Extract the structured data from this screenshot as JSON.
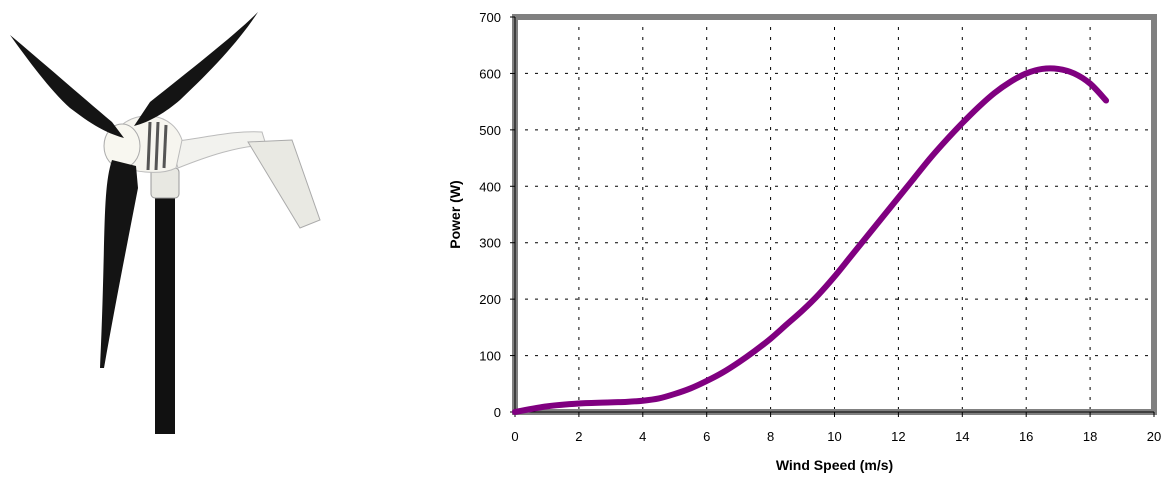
{
  "image": {
    "subject": "wind-turbine-icon"
  },
  "colors": {
    "curve": "#800080",
    "frame": "#808080",
    "grid": "#000000"
  },
  "chart_data": {
    "type": "line",
    "xlabel": "Wind Speed (m/s)",
    "ylabel": "Power (W)",
    "xlim": [
      0,
      20
    ],
    "ylim": [
      0,
      700
    ],
    "xticks": [
      0,
      2,
      4,
      6,
      8,
      10,
      12,
      14,
      16,
      18,
      20
    ],
    "yticks": [
      0,
      100,
      200,
      300,
      400,
      500,
      600,
      700
    ],
    "grid": true,
    "series": [
      {
        "x": [
          0,
          1,
          2,
          3,
          3.5,
          4,
          4.5,
          5,
          5.5,
          6,
          6.5,
          7,
          7.5,
          8,
          8.5,
          9,
          9.5,
          10,
          10.5,
          11,
          11.5,
          12,
          12.5,
          13,
          13.5,
          14,
          14.5,
          15,
          15.5,
          16,
          16.5,
          17,
          17.5,
          18,
          18.5
        ],
        "y": [
          0,
          10,
          15,
          17,
          18,
          20,
          24,
          32,
          42,
          55,
          70,
          88,
          108,
          130,
          155,
          180,
          208,
          240,
          275,
          310,
          345,
          380,
          415,
          450,
          482,
          512,
          540,
          565,
          585,
          600,
          608,
          608,
          600,
          582,
          552
        ]
      }
    ]
  }
}
